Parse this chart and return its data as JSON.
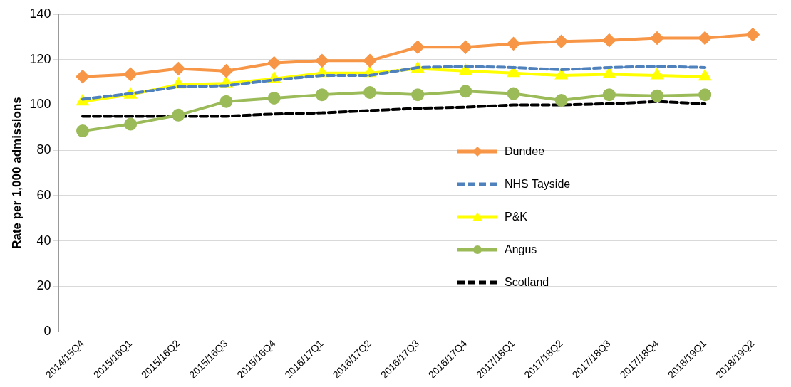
{
  "chart_data": {
    "type": "line",
    "ylabel": "Rate per 1,000 admissions",
    "categories": [
      "2014/15Q4",
      "2015/16Q1",
      "2015/16Q2",
      "2015/16Q3",
      "2015/16Q4",
      "2016/17Q1",
      "2016/17Q2",
      "2016/17Q3",
      "2016/17Q4",
      "2017/18Q1",
      "2017/18Q2",
      "2017/18Q3",
      "2017/18Q4",
      "2018/19Q1",
      "2018/19Q2"
    ],
    "ylim": [
      0,
      140
    ],
    "yticks": [
      0,
      20,
      40,
      60,
      80,
      100,
      120,
      140
    ],
    "grid": "y",
    "legend": "right",
    "series": [
      {
        "name": "Dundee",
        "color": "#f79646",
        "marker": "diamond",
        "line_style": "solid",
        "values": [
          112.5,
          113.5,
          116,
          115,
          118.5,
          119.5,
          119.5,
          125.5,
          125.5,
          127,
          128,
          128.5,
          129.5,
          129.5,
          131
        ]
      },
      {
        "name": "NHS Tayside",
        "color": "#4f81bd",
        "marker": "none",
        "line_style": "dashed",
        "values": [
          102.5,
          105,
          108,
          108.5,
          111,
          113,
          113,
          116.5,
          117,
          116.5,
          115.5,
          116.5,
          117,
          116.5,
          null
        ]
      },
      {
        "name": "P&K",
        "color": "#ffff00",
        "marker": "triangle",
        "line_style": "solid",
        "values": [
          101.5,
          104.5,
          109,
          109.5,
          111.5,
          114,
          114,
          116,
          115,
          114,
          113,
          113.5,
          113,
          112.5,
          null
        ]
      },
      {
        "name": "Angus",
        "color": "#9bbb59",
        "marker": "circle",
        "line_style": "solid",
        "values": [
          88.5,
          91.5,
          95.5,
          101.5,
          103,
          104.5,
          105.5,
          104.5,
          106,
          105,
          102,
          104.5,
          104,
          104.5,
          null
        ]
      },
      {
        "name": "Scotland",
        "color": "#000000",
        "marker": "none",
        "line_style": "dashed",
        "values": [
          95,
          95,
          95,
          95,
          96,
          96.5,
          97.5,
          98.5,
          99,
          100,
          100,
          100.5,
          101.5,
          100.5,
          null
        ]
      }
    ]
  }
}
